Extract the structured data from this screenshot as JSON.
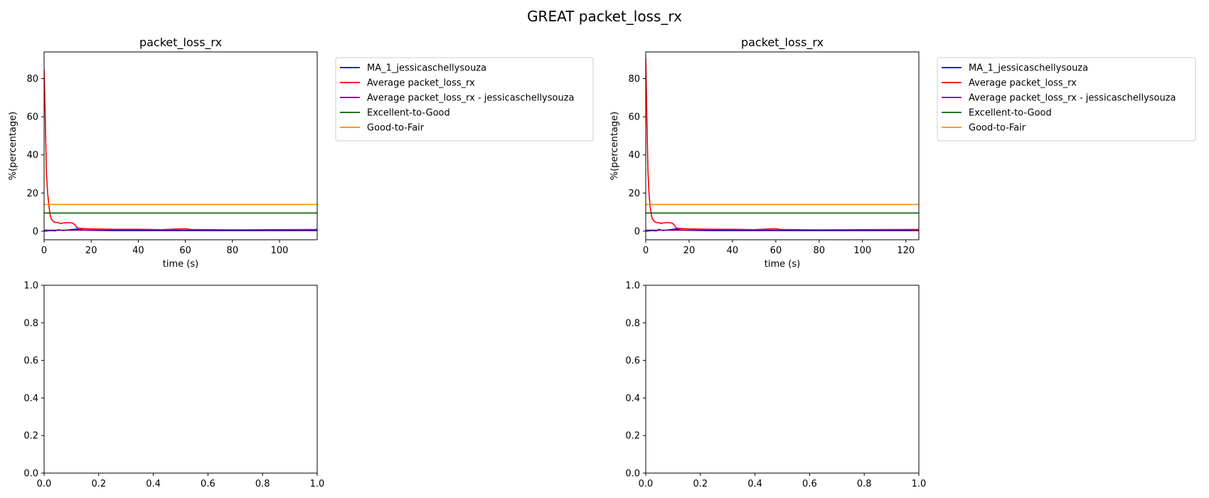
{
  "figure": {
    "suptitle": "GREAT packet_loss_rx"
  },
  "chart_data": [
    {
      "type": "line",
      "panel": "top-left",
      "title": "packet_loss_rx",
      "xlabel": "time (s)",
      "ylabel": "%(percentage)",
      "xlim": [
        0,
        116
      ],
      "ylim": [
        -4.5,
        94
      ],
      "xticks": [
        0,
        20,
        40,
        60,
        80,
        100
      ],
      "yticks": [
        0,
        20,
        40,
        60,
        80
      ],
      "legend_position": "outside-right-top",
      "series": [
        {
          "name": "MA_1_jessicaschellysouza",
          "color": "#0000ff",
          "x": [
            0,
            3,
            5,
            6,
            8,
            10,
            12,
            14,
            16,
            18,
            20,
            30,
            40,
            60,
            80,
            100,
            116
          ],
          "y": [
            0,
            0.3,
            0.2,
            0.8,
            0.3,
            0.6,
            0.9,
            1.1,
            0.7,
            0.5,
            0.4,
            0.3,
            0.3,
            0.3,
            0.3,
            0.3,
            0.3
          ]
        },
        {
          "name": "Average packet_loss_rx",
          "color": "#ff0000",
          "x": [
            0,
            0.5,
            1,
            1.5,
            2,
            2.5,
            3,
            4,
            5,
            6,
            7,
            8,
            10,
            12,
            13,
            14,
            15,
            18,
            20,
            30,
            40,
            50,
            58,
            60,
            62,
            70,
            80,
            100,
            116
          ],
          "y": [
            85,
            60,
            30,
            20,
            14,
            9,
            6.5,
            5,
            4.5,
            4.5,
            4,
            4.3,
            4.5,
            4.3,
            3.5,
            1.8,
            1.5,
            1.3,
            1.2,
            1.0,
            1.0,
            0.8,
            1.2,
            1.3,
            0.9,
            0.8,
            0.7,
            0.8,
            0.9
          ]
        },
        {
          "name": "Average packet_loss_rx - jessicaschellysouza",
          "color": "#800080",
          "x": [
            0,
            116
          ],
          "y": [
            0.5,
            0.5
          ]
        },
        {
          "name": "Excellent-to-Good",
          "color": "#006400",
          "x": [
            0,
            116
          ],
          "y": [
            9.5,
            9.5
          ]
        },
        {
          "name": "Good-to-Fair",
          "color": "#ff8c00",
          "x": [
            0,
            116
          ],
          "y": [
            14,
            14
          ]
        }
      ]
    },
    {
      "type": "line",
      "panel": "top-right",
      "title": "packet_loss_rx",
      "xlabel": "time (s)",
      "ylabel": "%(percentage)",
      "xlim": [
        0,
        126
      ],
      "ylim": [
        -4.5,
        94
      ],
      "xticks": [
        0,
        20,
        40,
        60,
        80,
        100,
        120
      ],
      "yticks": [
        0,
        20,
        40,
        60,
        80
      ],
      "legend_position": "outside-right-top",
      "series": [
        {
          "name": "MA_1_jessicaschellysouza",
          "color": "#0000ff",
          "x": [
            0,
            3,
            5,
            6,
            8,
            10,
            12,
            14,
            16,
            18,
            20,
            30,
            40,
            60,
            80,
            100,
            126
          ],
          "y": [
            0,
            0.3,
            0.2,
            0.9,
            0.3,
            0.6,
            0.9,
            1.2,
            0.7,
            0.5,
            0.4,
            0.3,
            0.3,
            0.3,
            0.3,
            0.3,
            0.3
          ]
        },
        {
          "name": "Average packet_loss_rx",
          "color": "#ff0000",
          "x": [
            0,
            0.5,
            1,
            1.5,
            2,
            2.5,
            3,
            4,
            5,
            6,
            7,
            8,
            10,
            12,
            13,
            14,
            15,
            18,
            20,
            30,
            40,
            50,
            58,
            60,
            62,
            70,
            80,
            100,
            126
          ],
          "y": [
            91,
            60,
            32,
            20,
            13,
            9,
            6.5,
            5,
            4.5,
            4.5,
            4,
            4.3,
            4.5,
            4.3,
            3.5,
            1.8,
            1.5,
            1.3,
            1.2,
            1.0,
            1.0,
            0.8,
            1.2,
            1.3,
            0.9,
            0.8,
            0.7,
            0.8,
            0.9
          ]
        },
        {
          "name": "Average packet_loss_rx - jessicaschellysouza",
          "color": "#800080",
          "x": [
            0,
            126
          ],
          "y": [
            0.5,
            0.5
          ]
        },
        {
          "name": "Excellent-to-Good",
          "color": "#006400",
          "x": [
            0,
            126
          ],
          "y": [
            9.5,
            9.5
          ]
        },
        {
          "name": "Good-to-Fair",
          "color": "#ff8c00",
          "x": [
            0,
            126
          ],
          "y": [
            14,
            14
          ]
        }
      ]
    },
    {
      "type": "line",
      "panel": "bottom-left",
      "title": "",
      "xlabel": "",
      "ylabel": "",
      "xlim": [
        0,
        1
      ],
      "ylim": [
        0,
        1
      ],
      "xticks": [
        0.0,
        0.2,
        0.4,
        0.6,
        0.8,
        1.0
      ],
      "yticks": [
        0.0,
        0.2,
        0.4,
        0.6,
        0.8,
        1.0
      ],
      "series": []
    },
    {
      "type": "line",
      "panel": "bottom-right",
      "title": "",
      "xlabel": "",
      "ylabel": "",
      "xlim": [
        0,
        1
      ],
      "ylim": [
        0,
        1
      ],
      "xticks": [
        0.0,
        0.2,
        0.4,
        0.6,
        0.8,
        1.0
      ],
      "yticks": [
        0.0,
        0.2,
        0.4,
        0.6,
        0.8,
        1.0
      ],
      "series": []
    }
  ]
}
